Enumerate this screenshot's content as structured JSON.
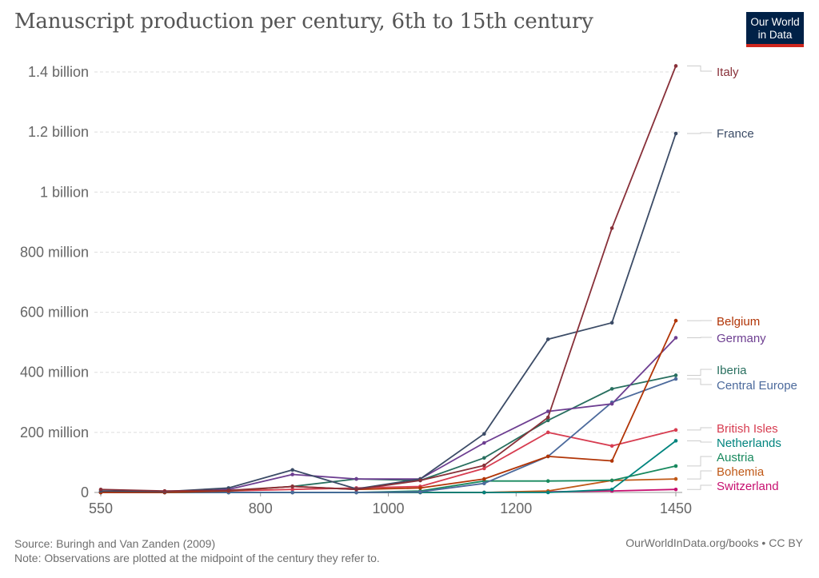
{
  "title": "Manuscript production per century, 6th to 15th century",
  "logo": {
    "line1": "Our World",
    "line2": "in Data"
  },
  "footer": {
    "source": "Source: Buringh and Van Zanden (2009)",
    "note": "Note: Observations are plotted at the midpoint of the century they refer to.",
    "credit": "OurWorldInData.org/books • CC BY"
  },
  "chart_data": {
    "type": "line",
    "x": [
      550,
      650,
      750,
      850,
      950,
      1050,
      1150,
      1250,
      1350,
      1450
    ],
    "xlim": [
      540,
      1460
    ],
    "ylim": [
      0,
      1400000000
    ],
    "x_ticks": [
      {
        "value": 550,
        "label": "550"
      },
      {
        "value": 800,
        "label": "800"
      },
      {
        "value": 1000,
        "label": "1000"
      },
      {
        "value": 1200,
        "label": "1200"
      },
      {
        "value": 1450,
        "label": "1450"
      }
    ],
    "y_ticks": [
      {
        "value": 0,
        "label": "0"
      },
      {
        "value": 200000000,
        "label": "200 million"
      },
      {
        "value": 400000000,
        "label": "400 million"
      },
      {
        "value": 600000000,
        "label": "600 million"
      },
      {
        "value": 800000000,
        "label": "800 million"
      },
      {
        "value": 1000000000,
        "label": "1 billion"
      },
      {
        "value": 1200000000,
        "label": "1.2 billion"
      },
      {
        "value": 1400000000,
        "label": "1.4 billion"
      }
    ],
    "grid": "horizontal dashed",
    "legend_placement": "right, labels at line ends",
    "series": [
      {
        "name": "Italy",
        "color": "#883039",
        "label_y": 1400000000,
        "values": [
          10000000,
          5000000,
          7000000,
          20000000,
          10000000,
          40000000,
          90000000,
          250000000,
          880000000,
          1420000000
        ]
      },
      {
        "name": "France",
        "color": "#3b4b66",
        "label_y": 1195000000,
        "values": [
          5000000,
          3000000,
          15000000,
          75000000,
          12000000,
          45000000,
          195000000,
          510000000,
          565000000,
          1195000000
        ]
      },
      {
        "name": "Belgium",
        "color": "#b13507",
        "label_y": 572000000,
        "values": [
          0,
          0,
          5000000,
          20000000,
          10000000,
          15000000,
          45000000,
          120000000,
          105000000,
          572000000
        ]
      },
      {
        "name": "Germany",
        "color": "#6d3e91",
        "label_y": 515000000,
        "values": [
          0,
          0,
          10000000,
          60000000,
          45000000,
          45000000,
          165000000,
          270000000,
          295000000,
          515000000
        ]
      },
      {
        "name": "Iberia",
        "color": "#286f5f",
        "label_y": 390000000,
        "values": [
          0,
          0,
          5000000,
          20000000,
          45000000,
          40000000,
          115000000,
          240000000,
          345000000,
          390000000
        ]
      },
      {
        "name": "Central Europe",
        "color": "#4c6a9c",
        "label_y": 378000000,
        "values": [
          0,
          0,
          0,
          0,
          0,
          2000000,
          30000000,
          120000000,
          300000000,
          378000000
        ]
      },
      {
        "name": "British Isles",
        "color": "#d73c50",
        "label_y": 208000000,
        "values": [
          0,
          0,
          5000000,
          10000000,
          15000000,
          20000000,
          80000000,
          200000000,
          155000000,
          208000000
        ]
      },
      {
        "name": "Netherlands",
        "color": "#00847e",
        "label_y": 172000000,
        "values": [
          0,
          0,
          0,
          0,
          0,
          0,
          0,
          0,
          10000000,
          172000000
        ]
      },
      {
        "name": "Austria",
        "color": "#18895e",
        "label_y": 88000000,
        "values": [
          0,
          0,
          0,
          0,
          0,
          5000000,
          38000000,
          38000000,
          40000000,
          88000000
        ]
      },
      {
        "name": "Bohemia",
        "color": "#c05917",
        "label_y": 45000000,
        "values": [
          0,
          0,
          0,
          0,
          0,
          0,
          0,
          5000000,
          40000000,
          45000000
        ]
      },
      {
        "name": "Switzerland",
        "color": "#c71070",
        "label_y": 10000000,
        "values": [
          0,
          0,
          0,
          0,
          0,
          0,
          0,
          2000000,
          5000000,
          10000000
        ]
      }
    ]
  }
}
